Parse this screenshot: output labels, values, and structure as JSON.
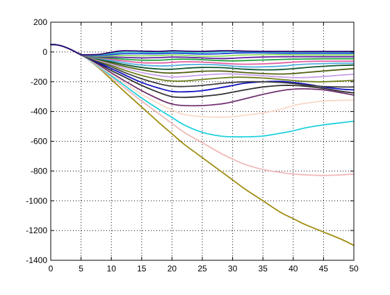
{
  "chart_data": {
    "type": "line",
    "title": "",
    "xlabel": "",
    "ylabel": "",
    "xlim": [
      0,
      50
    ],
    "ylim": [
      -1400,
      200
    ],
    "xticks": [
      0,
      5,
      10,
      15,
      20,
      25,
      30,
      35,
      40,
      45,
      50
    ],
    "yticks": [
      -1400,
      -1200,
      -1000,
      -800,
      -600,
      -400,
      -200,
      0,
      200
    ],
    "grid": true,
    "grid_style": "dotted",
    "legend": "none",
    "series": [
      {
        "color": "#a08c10",
        "x": [
          0,
          1,
          2,
          3,
          4,
          5,
          6,
          8,
          10,
          12,
          15,
          18,
          20,
          22,
          25,
          28,
          30,
          32,
          35,
          38,
          40,
          42,
          45,
          48,
          50
        ],
        "y": [
          50,
          48,
          38,
          22,
          2,
          -20,
          -45,
          -110,
          -185,
          -260,
          -370,
          -480,
          -550,
          -620,
          -710,
          -800,
          -860,
          -920,
          -1000,
          -1080,
          -1120,
          -1160,
          -1210,
          -1260,
          -1300
        ]
      },
      {
        "color": "#f0b8b8",
        "x": [
          0,
          1,
          2,
          3,
          4,
          5,
          6,
          8,
          10,
          12,
          15,
          18,
          20,
          22,
          25,
          28,
          30,
          32,
          35,
          38,
          40,
          42,
          45,
          48,
          50
        ],
        "y": [
          50,
          48,
          38,
          22,
          2,
          -20,
          -45,
          -105,
          -170,
          -235,
          -330,
          -420,
          -480,
          -540,
          -610,
          -680,
          -720,
          -755,
          -790,
          -810,
          -820,
          -826,
          -830,
          -826,
          -820
        ]
      },
      {
        "color": "#20d0e0",
        "x": [
          0,
          1,
          2,
          3,
          4,
          5,
          6,
          8,
          10,
          12,
          15,
          18,
          20,
          22,
          25,
          28,
          30,
          32,
          35,
          38,
          40,
          42,
          45,
          48,
          50
        ],
        "y": [
          50,
          48,
          38,
          22,
          2,
          -20,
          -44,
          -100,
          -160,
          -220,
          -310,
          -390,
          -440,
          -490,
          -540,
          -565,
          -570,
          -570,
          -565,
          -545,
          -530,
          -510,
          -490,
          -475,
          -465
        ]
      },
      {
        "color": "#f8d8c8",
        "x": [
          0,
          1,
          2,
          3,
          4,
          5,
          6,
          8,
          10,
          12,
          15,
          18,
          20,
          22,
          25,
          28,
          30,
          32,
          35,
          38,
          40,
          42,
          45,
          48,
          50
        ],
        "y": [
          50,
          48,
          38,
          22,
          2,
          -20,
          -42,
          -95,
          -150,
          -205,
          -285,
          -350,
          -390,
          -420,
          -435,
          -438,
          -435,
          -425,
          -410,
          -385,
          -360,
          -345,
          -330,
          -325,
          -325
        ]
      },
      {
        "color": "#703070",
        "x": [
          0,
          1,
          2,
          3,
          4,
          5,
          6,
          8,
          10,
          12,
          15,
          18,
          20,
          22,
          25,
          28,
          30,
          32,
          35,
          38,
          40,
          42,
          45,
          48,
          50
        ],
        "y": [
          50,
          48,
          38,
          22,
          2,
          -20,
          -40,
          -88,
          -140,
          -190,
          -260,
          -320,
          -350,
          -360,
          -360,
          -350,
          -335,
          -315,
          -285,
          -260,
          -250,
          -248,
          -255,
          -275,
          -290
        ]
      },
      {
        "color": "#303030",
        "x": [
          0,
          1,
          2,
          3,
          4,
          5,
          6,
          8,
          10,
          12,
          15,
          18,
          20,
          22,
          25,
          28,
          30,
          32,
          35,
          38,
          40,
          42,
          45,
          48,
          50
        ],
        "y": [
          50,
          48,
          38,
          22,
          2,
          -20,
          -38,
          -80,
          -125,
          -165,
          -225,
          -275,
          -300,
          -305,
          -298,
          -285,
          -270,
          -255,
          -235,
          -225,
          -225,
          -230,
          -245,
          -265,
          -275
        ]
      },
      {
        "color": "#1010c0",
        "x": [
          0,
          1,
          2,
          3,
          4,
          5,
          6,
          8,
          10,
          12,
          15,
          18,
          20,
          22,
          25,
          28,
          30,
          32,
          35,
          38,
          40,
          42,
          45,
          48,
          50
        ],
        "y": [
          50,
          48,
          38,
          22,
          2,
          -20,
          -36,
          -75,
          -112,
          -150,
          -205,
          -245,
          -265,
          -268,
          -260,
          -240,
          -225,
          -210,
          -200,
          -198,
          -205,
          -215,
          -235,
          -250,
          -255
        ]
      },
      {
        "color": "#404040",
        "x": [
          0,
          1,
          2,
          3,
          4,
          5,
          6,
          8,
          10,
          12,
          15,
          18,
          20,
          22,
          25,
          28,
          30,
          32,
          35,
          38,
          40,
          42,
          45,
          48,
          50
        ],
        "y": [
          50,
          48,
          38,
          22,
          2,
          -20,
          -34,
          -68,
          -100,
          -135,
          -180,
          -215,
          -230,
          -232,
          -225,
          -212,
          -205,
          -200,
          -200,
          -205,
          -212,
          -222,
          -232,
          -235,
          -235
        ]
      },
      {
        "color": "#708020",
        "x": [
          0,
          1,
          2,
          3,
          4,
          5,
          6,
          8,
          10,
          12,
          15,
          18,
          20,
          22,
          25,
          28,
          30,
          32,
          35,
          38,
          40,
          42,
          45,
          48,
          50
        ],
        "y": [
          50,
          48,
          38,
          22,
          2,
          -20,
          -32,
          -62,
          -90,
          -120,
          -158,
          -185,
          -195,
          -195,
          -185,
          -175,
          -170,
          -170,
          -175,
          -185,
          -192,
          -198,
          -200,
          -195,
          -190
        ]
      },
      {
        "color": "#c8a0e8",
        "x": [
          0,
          1,
          2,
          3,
          4,
          5,
          6,
          8,
          10,
          12,
          15,
          18,
          20,
          22,
          25,
          28,
          30,
          32,
          35,
          38,
          40,
          42,
          45,
          48,
          50
        ],
        "y": [
          50,
          48,
          38,
          22,
          2,
          -20,
          -30,
          -58,
          -82,
          -106,
          -138,
          -160,
          -168,
          -165,
          -155,
          -148,
          -148,
          -152,
          -160,
          -168,
          -172,
          -172,
          -165,
          -155,
          -150
        ]
      },
      {
        "color": "#506010",
        "x": [
          0,
          1,
          2,
          3,
          4,
          5,
          6,
          8,
          10,
          12,
          15,
          18,
          20,
          22,
          25,
          28,
          30,
          32,
          35,
          38,
          40,
          42,
          45,
          48,
          50
        ],
        "y": [
          50,
          48,
          38,
          22,
          2,
          -20,
          -28,
          -52,
          -74,
          -95,
          -120,
          -138,
          -142,
          -138,
          -130,
          -128,
          -132,
          -138,
          -145,
          -148,
          -145,
          -138,
          -128,
          -118,
          -112
        ]
      },
      {
        "color": "#105830",
        "x": [
          0,
          1,
          2,
          3,
          4,
          5,
          6,
          8,
          10,
          12,
          15,
          18,
          20,
          22,
          25,
          28,
          30,
          32,
          35,
          38,
          40,
          42,
          45,
          48,
          50
        ],
        "y": [
          50,
          48,
          38,
          22,
          2,
          -19,
          -27,
          -48,
          -66,
          -84,
          -104,
          -115,
          -116,
          -110,
          -104,
          -105,
          -110,
          -116,
          -120,
          -118,
          -112,
          -105,
          -96,
          -90,
          -88
        ]
      },
      {
        "color": "#50b0e0",
        "x": [
          0,
          1,
          2,
          3,
          4,
          5,
          6,
          8,
          10,
          12,
          15,
          18,
          20,
          22,
          25,
          28,
          30,
          32,
          35,
          38,
          40,
          42,
          45,
          48,
          50
        ],
        "y": [
          50,
          48,
          38,
          22,
          2,
          -19,
          -26,
          -44,
          -58,
          -72,
          -88,
          -94,
          -92,
          -86,
          -84,
          -88,
          -95,
          -100,
          -100,
          -95,
          -88,
          -82,
          -78,
          -76,
          -76
        ]
      },
      {
        "color": "#e060a0",
        "x": [
          0,
          1,
          2,
          3,
          4,
          5,
          6,
          8,
          10,
          12,
          15,
          18,
          20,
          22,
          25,
          28,
          30,
          32,
          35,
          38,
          40,
          42,
          45,
          48,
          50
        ],
        "y": [
          50,
          48,
          38,
          22,
          2,
          -19,
          -25,
          -40,
          -50,
          -60,
          -72,
          -74,
          -70,
          -66,
          -68,
          -75,
          -80,
          -82,
          -80,
          -74,
          -68,
          -64,
          -62,
          -62,
          -62
        ]
      },
      {
        "color": "#20a040",
        "x": [
          0,
          1,
          2,
          3,
          4,
          5,
          6,
          8,
          10,
          12,
          15,
          18,
          20,
          22,
          25,
          28,
          30,
          32,
          35,
          38,
          40,
          42,
          45,
          48,
          50
        ],
        "y": [
          50,
          48,
          38,
          22,
          2,
          -18,
          -24,
          -36,
          -42,
          -48,
          -55,
          -55,
          -50,
          -48,
          -52,
          -58,
          -60,
          -58,
          -54,
          -50,
          -48,
          -47,
          -46,
          -46,
          -46
        ]
      },
      {
        "color": "#6020a0",
        "x": [
          0,
          1,
          2,
          3,
          4,
          5,
          6,
          8,
          10,
          12,
          15,
          18,
          20,
          22,
          25,
          28,
          30,
          32,
          35,
          38,
          40,
          42,
          45,
          48,
          50
        ],
        "y": [
          50,
          48,
          38,
          22,
          2,
          -18,
          -23,
          -32,
          -34,
          -36,
          -40,
          -38,
          -34,
          -35,
          -40,
          -44,
          -42,
          -38,
          -34,
          -32,
          -32,
          -32,
          -32,
          -32,
          -32
        ]
      },
      {
        "color": "#90e060",
        "x": [
          0,
          1,
          2,
          3,
          4,
          5,
          6,
          8,
          10,
          12,
          15,
          18,
          20,
          22,
          25,
          28,
          30,
          32,
          35,
          38,
          40,
          42,
          45,
          48,
          50
        ],
        "y": [
          50,
          48,
          38,
          22,
          2,
          -18,
          -22,
          -28,
          -26,
          -24,
          -26,
          -24,
          -20,
          -22,
          -28,
          -28,
          -24,
          -20,
          -18,
          -18,
          -19,
          -20,
          -20,
          -20,
          -20
        ]
      },
      {
        "color": "#2040e0",
        "x": [
          0,
          1,
          2,
          3,
          4,
          5,
          6,
          8,
          10,
          12,
          15,
          18,
          20,
          22,
          25,
          28,
          30,
          32,
          35,
          38,
          40,
          42,
          45,
          48,
          50
        ],
        "y": [
          50,
          48,
          38,
          22,
          2,
          -18,
          -21,
          -24,
          -18,
          -12,
          -12,
          -12,
          -8,
          -10,
          -14,
          -12,
          -8,
          -6,
          -6,
          -8,
          -9,
          -9,
          -9,
          -9,
          -9
        ]
      },
      {
        "color": "#40c8c0",
        "x": [
          0,
          1,
          2,
          3,
          4,
          5,
          6,
          8,
          10,
          12,
          15,
          18,
          20,
          22,
          25,
          28,
          30,
          32,
          35,
          38,
          40,
          42,
          45,
          48,
          50
        ],
        "y": [
          50,
          48,
          38,
          22,
          2,
          -17,
          -20,
          -20,
          -10,
          -2,
          -2,
          -4,
          0,
          -2,
          -4,
          0,
          2,
          2,
          0,
          -1,
          -2,
          -2,
          -2,
          -2,
          -2
        ]
      },
      {
        "color": "#300070",
        "x": [
          0,
          1,
          2,
          3,
          4,
          5,
          6,
          8,
          10,
          12,
          15,
          18,
          20,
          22,
          25,
          28,
          30,
          32,
          35,
          38,
          40,
          42,
          45,
          48,
          50
        ],
        "y": [
          50,
          48,
          38,
          22,
          2,
          -17,
          -19,
          -16,
          -2,
          8,
          6,
          4,
          8,
          6,
          4,
          8,
          8,
          6,
          4,
          4,
          3,
          3,
          3,
          3,
          3
        ]
      }
    ]
  }
}
